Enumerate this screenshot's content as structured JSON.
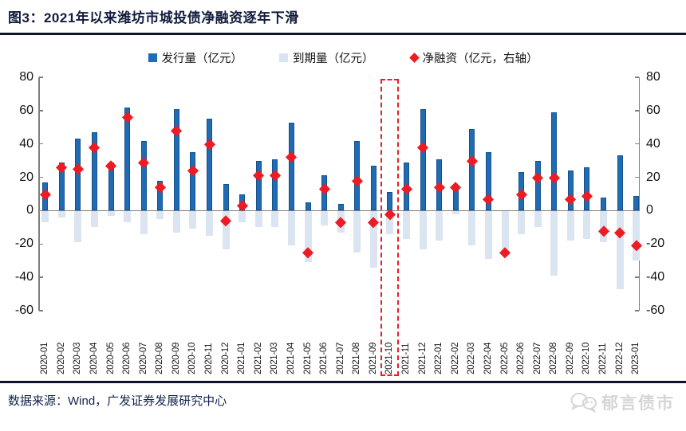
{
  "title": "图3：2021年以来潍坊市城投债净融资逐年下滑",
  "legend": [
    {
      "label": "发行量（亿元）",
      "color": "#1f6cb4",
      "shape": "square"
    },
    {
      "label": "到期量（亿元）",
      "color": "#dbe5f1",
      "shape": "square"
    },
    {
      "label": "净融资（亿元，右轴）",
      "color": "#ed1c24",
      "shape": "diamond"
    }
  ],
  "footer": {
    "source": "数据来源：Wind，广发证券发展研究中心",
    "watermark": "郁言债市"
  },
  "chart_data": {
    "type": "bar",
    "title": "2021年以来潍坊市城投债净融资逐年下滑",
    "categories": [
      "2020-01",
      "2020-02",
      "2020-03",
      "2020-04",
      "2020-05",
      "2020-06",
      "2020-07",
      "2020-08",
      "2020-09",
      "2020-10",
      "2020-11",
      "2020-12",
      "2021-01",
      "2021-02",
      "2021-03",
      "2021-04",
      "2021-05",
      "2021-06",
      "2021-07",
      "2021-08",
      "2021-09",
      "2021-10",
      "2021-11",
      "2021-12",
      "2022-01",
      "2022-02",
      "2022-03",
      "2022-04",
      "2022-05",
      "2022-06",
      "2022-07",
      "2022-08",
      "2022-09",
      "2022-10",
      "2022-11",
      "2022-12",
      "2023-01"
    ],
    "series": [
      {
        "name": "发行量（亿元）",
        "type": "bar",
        "axis": "left",
        "color": "#1f6cb4",
        "values": [
          17,
          29,
          43,
          47,
          29,
          62,
          42,
          18,
          61,
          35,
          55,
          16,
          10,
          30,
          31,
          53,
          5,
          21,
          4,
          42,
          27,
          11,
          29,
          61,
          31,
          13,
          49,
          35,
          0,
          23,
          30,
          59,
          24,
          26,
          8,
          33,
          9
        ]
      },
      {
        "name": "到期量（亿元）",
        "type": "bar",
        "axis": "left",
        "color": "#dbe5f1",
        "values": [
          -7,
          -4,
          -19,
          -10,
          -3,
          -7,
          -14,
          -5,
          -13,
          -11,
          -15,
          -23,
          -7,
          -10,
          -10,
          -21,
          -31,
          -9,
          -13,
          -25,
          -34,
          -14,
          -17,
          -23,
          -18,
          -2,
          -21,
          -29,
          -23,
          -14,
          -10,
          -39,
          -18,
          -17,
          -19,
          -47,
          -30
        ]
      },
      {
        "name": "净融资（亿元，右轴）",
        "type": "scatter-diamond",
        "axis": "right",
        "color": "#ed1c24",
        "values": [
          10,
          26,
          25,
          38,
          27,
          56,
          29,
          14,
          48,
          24,
          40,
          -6,
          3,
          21,
          21,
          32,
          -25,
          13,
          -7,
          18,
          -7,
          -2,
          13,
          38,
          14,
          14,
          30,
          7,
          -25,
          10,
          20,
          20,
          7,
          9,
          -12,
          -13,
          -21
        ]
      }
    ],
    "ylim": [
      -60,
      80
    ],
    "yticks": [
      80,
      60,
      40,
      20,
      0,
      -20,
      -40,
      -60
    ],
    "ylim_right": [
      -60,
      80
    ],
    "grid": false,
    "legend_position": "top",
    "highlight": {
      "category": "2021-10",
      "style": "red-dashed-rectangle"
    }
  }
}
